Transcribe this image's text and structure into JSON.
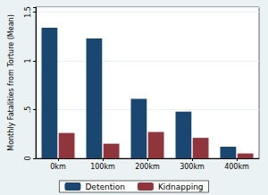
{
  "chart_data": {
    "type": "bar",
    "ylabel": "Monthly Fatalities from Torture (Mean)",
    "categories": [
      "0km",
      "100km",
      "200km",
      "300km",
      "400km"
    ],
    "series": [
      {
        "name": "Detention",
        "color": "#1a476f",
        "values": [
          1.34,
          1.23,
          0.61,
          0.48,
          0.12
        ]
      },
      {
        "name": "Kidnapping",
        "color": "#90353b",
        "values": [
          0.26,
          0.15,
          0.27,
          0.21,
          0.05
        ]
      }
    ],
    "ylim": [
      0,
      1.55
    ],
    "yticks": [
      0,
      {
        "value": 0.5,
        "label": ".5"
      },
      1,
      1.5
    ],
    "grid": true,
    "legend": "bottom"
  }
}
